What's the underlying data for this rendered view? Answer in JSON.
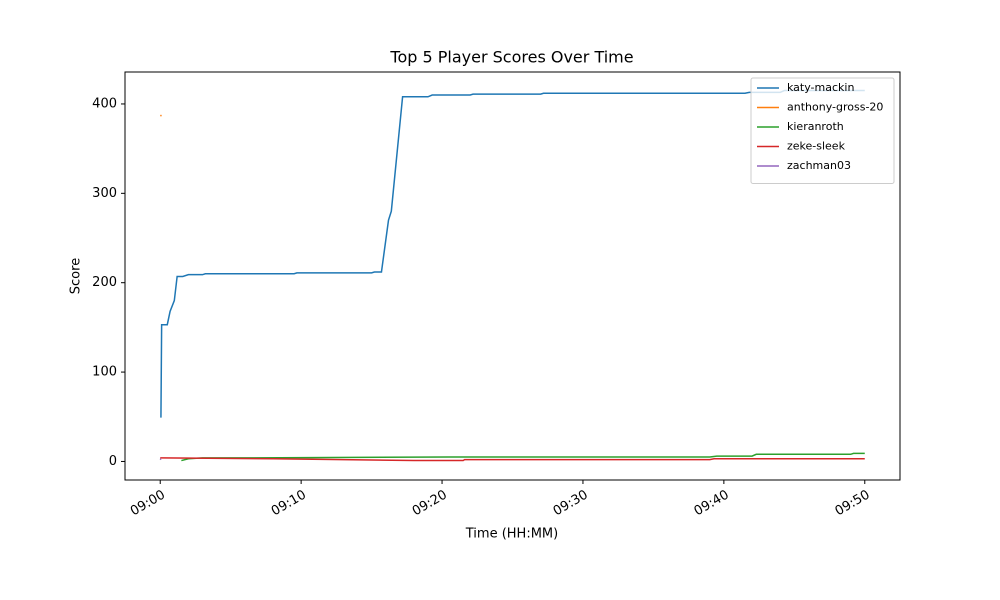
{
  "chart_data": {
    "type": "line",
    "title": "Top 5 Player Scores Over Time",
    "x_label": "Time (HH:MM)",
    "y_label": "Score",
    "xlim": [
      537.5,
      592.5
    ],
    "ylim": [
      -20.75,
      435.75
    ],
    "xticks": [
      {
        "value": 540,
        "label": "09:00"
      },
      {
        "value": 550,
        "label": "09:10"
      },
      {
        "value": 560,
        "label": "09:20"
      },
      {
        "value": 570,
        "label": "09:30"
      },
      {
        "value": 580,
        "label": "09:40"
      },
      {
        "value": 590,
        "label": "09:50"
      }
    ],
    "yticks": [
      0,
      100,
      200,
      300,
      400
    ],
    "grid": false,
    "legend": "upper right",
    "series": [
      {
        "name": "katy-mackin",
        "color": "#1f77b4",
        "x": [
          540.05,
          540.1,
          540.5,
          540.7,
          541,
          541.2,
          541.6,
          542,
          543,
          543.2,
          549.5,
          549.7,
          555,
          555.2,
          555.7,
          556.2,
          556.4,
          557.2,
          559,
          559.3,
          562,
          562.2,
          567,
          567.2,
          581.5,
          581.8,
          584,
          584.3,
          590
        ],
        "values": [
          49,
          153,
          153,
          168,
          180,
          207,
          207,
          209,
          209,
          210,
          210,
          211,
          211,
          212,
          212,
          270,
          280,
          408,
          408,
          410,
          410,
          411,
          411,
          412,
          412,
          413,
          413,
          415,
          415
        ]
      },
      {
        "name": "anthony-gross-20",
        "color": "#ff7f0e",
        "x": [
          540,
          540.1
        ],
        "values": [
          387,
          387
        ]
      },
      {
        "name": "kieranroth",
        "color": "#2ca02c",
        "x": [
          541.5,
          542,
          543,
          546,
          560.5,
          579,
          579.5,
          582,
          582.3,
          589,
          589.2,
          590
        ],
        "values": [
          1,
          3,
          4,
          4,
          5,
          5,
          6,
          6,
          8,
          8,
          9,
          9
        ]
      },
      {
        "name": "zeke-sleek",
        "color": "#d62728",
        "x": [
          540,
          548,
          558,
          561.5,
          561.6,
          579,
          579.3,
          590
        ],
        "values": [
          4,
          3,
          1,
          1,
          2,
          2,
          3,
          3
        ]
      },
      {
        "name": "zachman03",
        "color": "#9467bd",
        "x": [
          540,
          540.05
        ],
        "values": [
          2,
          3
        ]
      }
    ]
  }
}
